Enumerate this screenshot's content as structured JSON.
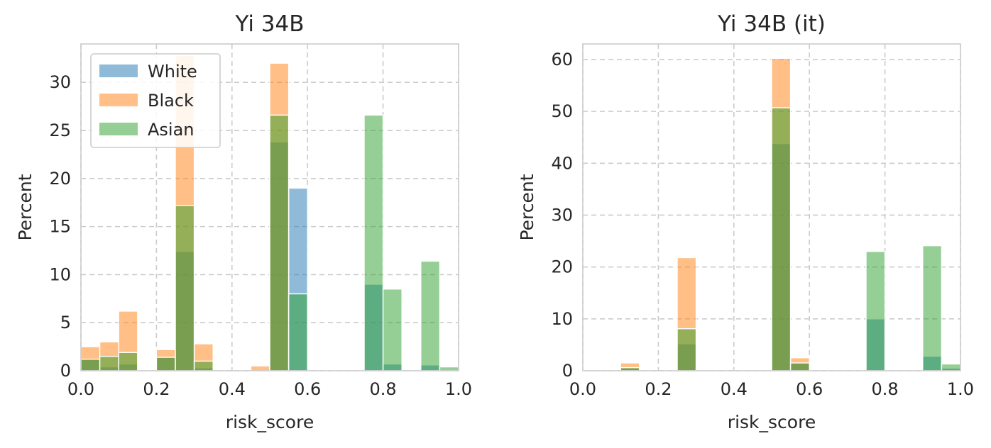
{
  "chart_data": [
    {
      "type": "bar",
      "title": "Yi 34B",
      "xlabel": "risk_score",
      "ylabel": "Percent",
      "xlim": [
        0.0,
        1.0
      ],
      "ylim": [
        0,
        34
      ],
      "xticks": [
        "0.0",
        "0.2",
        "0.4",
        "0.6",
        "0.8",
        "1.0"
      ],
      "yticks": [
        "0",
        "5",
        "10",
        "15",
        "20",
        "25",
        "30"
      ],
      "grid": true,
      "legend": "upper-left",
      "bin_width": 0.05,
      "bin_starts": [
        0.0,
        0.05,
        0.1,
        0.2,
        0.25,
        0.3,
        0.45,
        0.5,
        0.55,
        0.75,
        0.8,
        0.9,
        0.95
      ],
      "series": [
        {
          "name": "White",
          "color": "#1f77b4",
          "values": [
            1.2,
            0.4,
            0.7,
            1.4,
            12.4,
            0.3,
            0.0,
            23.8,
            19.0,
            9.0,
            0.7,
            0.6,
            0.0
          ]
        },
        {
          "name": "Black",
          "color": "#ff7f0e",
          "values": [
            2.5,
            3.0,
            6.2,
            2.2,
            32.8,
            2.8,
            0.5,
            32.0,
            0.0,
            0.0,
            0.0,
            0.0,
            0.0
          ]
        },
        {
          "name": "Asian",
          "color": "#2ca02c",
          "values": [
            1.2,
            1.5,
            1.9,
            1.4,
            17.2,
            1.0,
            0.0,
            26.6,
            8.0,
            26.6,
            8.5,
            11.4,
            0.4
          ]
        }
      ]
    },
    {
      "type": "bar",
      "title": "Yi 34B (it)",
      "xlabel": "risk_score",
      "ylabel": "Percent",
      "xlim": [
        0.0,
        1.0
      ],
      "ylim": [
        0,
        63
      ],
      "xticks": [
        "0.0",
        "0.2",
        "0.4",
        "0.6",
        "0.8",
        "1.0"
      ],
      "yticks": [
        "0",
        "10",
        "20",
        "30",
        "40",
        "50",
        "60"
      ],
      "grid": true,
      "legend": "none",
      "bin_width": 0.05,
      "bin_starts": [
        0.0,
        0.1,
        0.25,
        0.3,
        0.5,
        0.55,
        0.75,
        0.9,
        0.95
      ],
      "series": [
        {
          "name": "White",
          "color": "#1f77b4",
          "values": [
            0.2,
            0.5,
            5.2,
            0.1,
            43.8,
            1.5,
            10.0,
            2.8,
            0.5
          ]
        },
        {
          "name": "Black",
          "color": "#ff7f0e",
          "values": [
            0.2,
            1.5,
            21.8,
            0.3,
            60.2,
            2.5,
            0.0,
            0.0,
            0.0
          ]
        },
        {
          "name": "Asian",
          "color": "#2ca02c",
          "values": [
            0.2,
            0.6,
            8.1,
            0.2,
            50.7,
            1.5,
            23.0,
            24.1,
            1.3
          ]
        }
      ]
    }
  ]
}
